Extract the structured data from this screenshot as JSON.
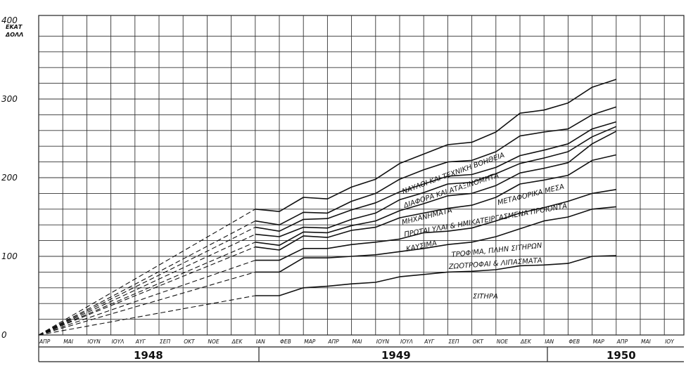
{
  "chart_data": {
    "type": "area",
    "title": "",
    "xlabel": "",
    "ylabel": "",
    "y_unit_label": [
      "ΕΚΑΤ",
      "ΔΟΛΛ"
    ],
    "ylim": [
      0,
      400
    ],
    "y_ticks": [
      0,
      100,
      200,
      300,
      400
    ],
    "grid": true,
    "months": [
      "ΑΠΡ",
      "ΜΑΙ",
      "ΙΟΥΝ",
      "ΙΟΥΛ",
      "ΑΥΓ",
      "ΣΕΠ",
      "ΟΚΤ",
      "ΝΟΕ",
      "ΔΕΚ",
      "ΙΑΝ",
      "ΦΕΒ",
      "ΜΑΡ",
      "ΑΠΡ",
      "ΜΑΙ",
      "ΙΟΥΝ",
      "ΙΟΥΛ",
      "ΑΥΓ",
      "ΣΕΠ",
      "ΟΚΤ",
      "ΝΟΕ",
      "ΔΕΚ",
      "ΙΑΝ",
      "ΦΕΒ",
      "ΜΑΡ",
      "ΑΠΡ",
      "ΜΑΙ",
      "ΙΟΥ"
    ],
    "years": [
      "1948",
      "1949",
      "1950"
    ],
    "start_value": 0,
    "projection_from_start": true,
    "cumulative_series": [
      {
        "name": "ΣΙΤΗΡΑ",
        "start_index": 9,
        "values": [
          50,
          50,
          60,
          62,
          65,
          67,
          74,
          77,
          80,
          81,
          83,
          88,
          89,
          91,
          100,
          101
        ]
      },
      {
        "name": "ΖΩΟΤΡΟΦΑΙ & ΛΙΠΑΣΜΑΤΑ",
        "start_index": 9,
        "values": [
          80,
          80,
          98,
          98,
          100,
          102,
          106,
          110,
          115,
          118,
          125,
          135,
          145,
          150,
          160,
          163
        ]
      },
      {
        "name": "ΤΡΟΦΙΜΑ, ΠΛΗΝ ΣΙΤΗΡΩΝ",
        "start_index": 9,
        "values": [
          95,
          95,
          110,
          110,
          115,
          118,
          122,
          130,
          132,
          136,
          145,
          155,
          162,
          170,
          180,
          185
        ]
      },
      {
        "name": "ΚΑΥΣΙΜΑ",
        "start_index": 9,
        "values": [
          112,
          108,
          126,
          124,
          133,
          137,
          149,
          155,
          161,
          165,
          175,
          192,
          197,
          203,
          222,
          229
        ]
      },
      {
        "name": "ΠΡΩΤΑΙ ΥΛΑΙ & ΗΜΙΚΑΤΕΙΡΓΑΣΜΕΝΑ ΠΡΟΙΟΝΤΑ",
        "start_index": 9,
        "values": [
          118,
          114,
          131,
          130,
          139,
          145,
          158,
          167,
          177,
          180,
          190,
          206,
          212,
          219,
          243,
          259
        ]
      },
      {
        "name": "ΜΗΧΑΝΗΜΑΤΑ",
        "start_index": 9,
        "values": [
          128,
          125,
          137,
          136,
          147,
          155,
          172,
          181,
          192,
          194,
          205,
          218,
          225,
          233,
          252,
          265
        ]
      },
      {
        "name": "ΜΕΤΑΦΟΡΙΚΑ ΜΕΣΑ",
        "start_index": 9,
        "values": [
          137,
          132,
          147,
          148,
          159,
          168,
          182,
          192,
          202,
          204,
          213,
          228,
          235,
          243,
          262,
          271
        ]
      },
      {
        "name": "ΔΙΑΦΟΡΑ ΚΑΙ ΑΤΑΞΙΝΟΜΗΤΑ",
        "start_index": 9,
        "values": [
          145,
          140,
          156,
          155,
          170,
          180,
          198,
          210,
          220,
          222,
          233,
          253,
          258,
          262,
          280,
          290
        ]
      },
      {
        "name": "ΝΑΥΛΟΙ ΚΑΙ ΤΕΧΝΙΚΗ ΒΟΗΘΕΙΑ",
        "start_index": 9,
        "values": [
          160,
          157,
          175,
          173,
          188,
          198,
          218,
          230,
          242,
          245,
          258,
          282,
          286,
          295,
          315,
          325
        ]
      }
    ]
  }
}
